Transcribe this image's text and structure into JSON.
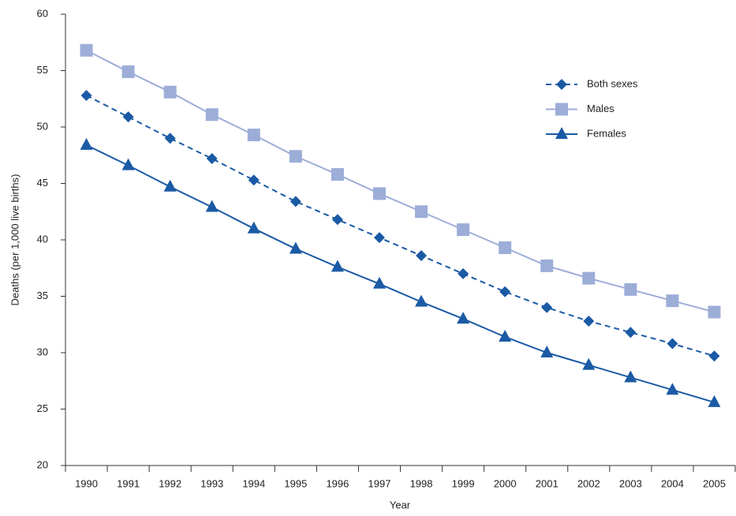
{
  "chart_data": {
    "type": "line",
    "x_label": "Year",
    "y_label": "Deaths (per 1,000 live births)",
    "categories": [
      "1990",
      "1991",
      "1992",
      "1993",
      "1994",
      "1995",
      "1996",
      "1997",
      "1998",
      "1999",
      "2000",
      "2001",
      "2002",
      "2003",
      "2004",
      "2005"
    ],
    "series": [
      {
        "name": "Both sexes",
        "color": "#1b5aa5",
        "marker": "diamond",
        "dashed": true,
        "values": [
          52.8,
          50.9,
          49.0,
          47.2,
          45.3,
          43.4,
          41.8,
          40.2,
          38.6,
          37.0,
          35.4,
          34.0,
          32.8,
          31.8,
          30.8,
          29.7
        ]
      },
      {
        "name": "Males",
        "color": "#9cadd7",
        "marker": "square",
        "dashed": false,
        "values": [
          56.8,
          54.9,
          53.1,
          51.1,
          49.3,
          47.4,
          45.8,
          44.1,
          42.5,
          40.9,
          39.3,
          37.7,
          36.6,
          35.6,
          34.6,
          33.6
        ]
      },
      {
        "name": "Females",
        "color": "#1b5aa5",
        "marker": "triangle",
        "dashed": false,
        "values": [
          48.4,
          46.6,
          44.7,
          42.9,
          41.0,
          39.2,
          37.6,
          36.1,
          34.5,
          33.0,
          31.4,
          30.0,
          28.9,
          27.8,
          26.7,
          25.6
        ]
      }
    ],
    "ylim": [
      20,
      60
    ],
    "yticks": [
      20,
      25,
      30,
      35,
      40,
      45,
      50,
      55,
      60
    ],
    "grid": false,
    "legend": "top-right"
  }
}
